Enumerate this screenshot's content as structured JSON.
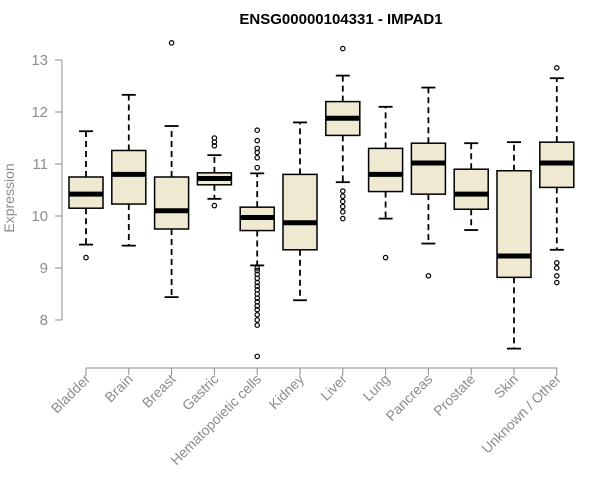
{
  "chart_data": {
    "type": "boxplot",
    "title": "ENSG00000104331 - IMPAD1",
    "xlabel": "",
    "ylabel": "Expression",
    "ylim": [
      7.1,
      13.3
    ],
    "yticks": [
      8,
      9,
      10,
      11,
      12,
      13
    ],
    "box_fill": "#efe9d2",
    "axis_color": "#8c8c8c",
    "categories": [
      "Bladder",
      "Brain",
      "Breast",
      "Gastric",
      "Hematopoietic cells",
      "Kidney",
      "Liver",
      "Lung",
      "Pancreas",
      "Prostate",
      "Skin",
      "Unknown / Other"
    ],
    "boxes": [
      {
        "name": "Bladder",
        "whisker_low": 9.45,
        "q1": 10.15,
        "median": 10.42,
        "q3": 10.75,
        "whisker_high": 11.63,
        "outliers": [
          9.2
        ]
      },
      {
        "name": "Brain",
        "whisker_low": 9.43,
        "q1": 10.23,
        "median": 10.8,
        "q3": 11.26,
        "whisker_high": 12.33,
        "outliers": []
      },
      {
        "name": "Breast",
        "whisker_low": 8.44,
        "q1": 9.75,
        "median": 10.1,
        "q3": 10.75,
        "whisker_high": 11.73,
        "outliers": [
          13.33
        ]
      },
      {
        "name": "Gastric",
        "whisker_low": 10.33,
        "q1": 10.6,
        "median": 10.72,
        "q3": 10.83,
        "whisker_high": 11.17,
        "outliers": [
          11.5,
          11.42,
          11.35,
          10.2
        ]
      },
      {
        "name": "Hematopoietic cells",
        "whisker_low": 9.05,
        "q1": 9.72,
        "median": 9.97,
        "q3": 10.17,
        "whisker_high": 10.82,
        "outliers": [
          11.65,
          11.45,
          11.3,
          11.22,
          11.12,
          10.93,
          9.0,
          8.95,
          8.88,
          8.8,
          8.72,
          8.65,
          8.58,
          8.5,
          8.42,
          8.35,
          8.27,
          8.2,
          8.1,
          8.0,
          7.9,
          7.3
        ]
      },
      {
        "name": "Kidney",
        "whisker_low": 8.38,
        "q1": 9.35,
        "median": 9.87,
        "q3": 10.8,
        "whisker_high": 11.8,
        "outliers": []
      },
      {
        "name": "Liver",
        "whisker_low": 10.65,
        "q1": 11.55,
        "median": 11.88,
        "q3": 12.2,
        "whisker_high": 12.7,
        "outliers": [
          13.22,
          10.48,
          10.38,
          10.28,
          10.18,
          10.08,
          9.95
        ]
      },
      {
        "name": "Lung",
        "whisker_low": 9.95,
        "q1": 10.47,
        "median": 10.8,
        "q3": 11.3,
        "whisker_high": 12.1,
        "outliers": [
          9.2
        ]
      },
      {
        "name": "Pancreas",
        "whisker_low": 9.47,
        "q1": 10.42,
        "median": 11.02,
        "q3": 11.4,
        "whisker_high": 12.47,
        "outliers": [
          8.85
        ]
      },
      {
        "name": "Prostate",
        "whisker_low": 9.73,
        "q1": 10.13,
        "median": 10.42,
        "q3": 10.9,
        "whisker_high": 11.4,
        "outliers": []
      },
      {
        "name": "Skin",
        "whisker_low": 7.45,
        "q1": 8.82,
        "median": 9.23,
        "q3": 10.87,
        "whisker_high": 11.42,
        "outliers": []
      },
      {
        "name": "Unknown / Other",
        "whisker_low": 9.35,
        "q1": 10.55,
        "median": 11.02,
        "q3": 11.42,
        "whisker_high": 12.65,
        "outliers": [
          12.85,
          9.1,
          9.0,
          8.85,
          8.72
        ]
      }
    ]
  }
}
